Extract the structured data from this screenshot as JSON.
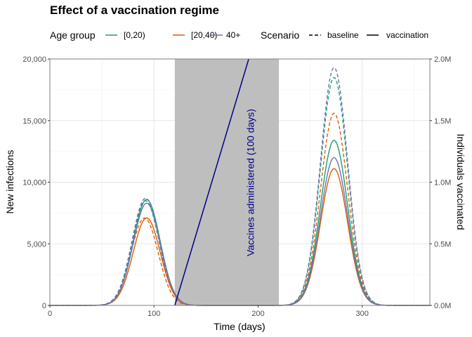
{
  "chart_data": {
    "type": "line",
    "title": "Effect of a vaccination regime",
    "xlabel": "Time (days)",
    "ylabel": "New infections",
    "ylabel_right": "Individuals vaccinated",
    "xlim": [
      0,
      365
    ],
    "ylim": [
      0,
      20000
    ],
    "ylim_right": [
      0,
      2000000
    ],
    "x_ticks": [
      0,
      100,
      200,
      300
    ],
    "x_tick_labels": [
      "0",
      "100",
      "200",
      "300"
    ],
    "y_ticks": [
      0,
      5000,
      10000,
      15000,
      20000
    ],
    "y_tick_labels": [
      "0",
      "5,000",
      "10,000",
      "15,000",
      "20,000"
    ],
    "y_right_ticks": [
      0,
      500000,
      1000000,
      1500000,
      2000000
    ],
    "y_right_tick_labels": [
      "0.0M",
      "0.5M",
      "1.0M",
      "1.5M",
      "2.0M"
    ],
    "grid": true,
    "legend_position": "top",
    "legend": {
      "age_title": "Age group",
      "scenario_title": "Scenario",
      "age_groups": [
        {
          "label": "[0,20)",
          "color": "#1b9e77"
        },
        {
          "label": "[20,40)",
          "color": "#d95f02"
        },
        {
          "label": "40+",
          "color": "#7570b3"
        }
      ],
      "scenarios": [
        {
          "label": "baseline",
          "dash": "dashed"
        },
        {
          "label": "vaccination",
          "dash": "solid"
        }
      ]
    },
    "shaded_region": {
      "x_start": 120,
      "x_end": 220,
      "color": "#bebebe"
    },
    "annotation": {
      "text": "Vaccines administered (100 days)",
      "color": "#00008b"
    },
    "vaccination_line": {
      "color": "#00008b",
      "x": [
        120,
        191
      ],
      "y_right": [
        0,
        2000000
      ]
    },
    "series": [
      {
        "age": "[0,20)",
        "scenario": "baseline",
        "color": "#1b9e77",
        "wave1": {
          "peak_x": 92,
          "peak": 8500,
          "width": 13
        },
        "wave2": {
          "peak_x": 273,
          "peak": 18500,
          "width": 13
        }
      },
      {
        "age": "[20,40)",
        "scenario": "baseline",
        "color": "#d95f02",
        "wave1": {
          "peak_x": 91,
          "peak": 7100,
          "width": 13
        },
        "wave2": {
          "peak_x": 273,
          "peak": 15600,
          "width": 13
        }
      },
      {
        "age": "40+",
        "scenario": "baseline",
        "color": "#7570b3",
        "wave1": {
          "peak_x": 92,
          "peak": 8700,
          "width": 13
        },
        "wave2": {
          "peak_x": 273,
          "peak": 19300,
          "width": 13
        }
      },
      {
        "age": "[0,20)",
        "scenario": "vaccination",
        "color": "#1b9e77",
        "wave1": {
          "peak_x": 93,
          "peak": 8600,
          "width": 13
        },
        "wave2": {
          "peak_x": 273,
          "peak": 13400,
          "width": 13
        }
      },
      {
        "age": "[20,40)",
        "scenario": "vaccination",
        "color": "#d95f02",
        "wave1": {
          "peak_x": 93,
          "peak": 7100,
          "width": 13
        },
        "wave2": {
          "peak_x": 273,
          "peak": 11100,
          "width": 13
        }
      },
      {
        "age": "40+",
        "scenario": "vaccination",
        "color": "#7570b3",
        "wave1": {
          "peak_x": 93,
          "peak": 8300,
          "width": 13
        },
        "wave2": {
          "peak_x": 273,
          "peak": 12000,
          "width": 13
        }
      }
    ]
  }
}
